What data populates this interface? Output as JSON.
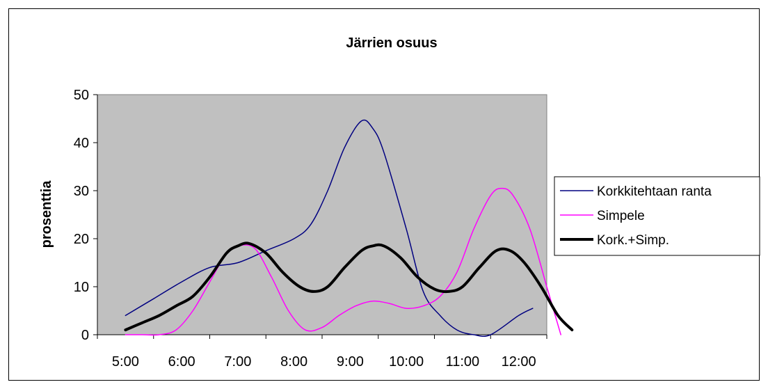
{
  "chart_data": {
    "type": "line",
    "title": "Järrien osuus",
    "xlabel": "",
    "ylabel": "prosenttia",
    "categories": [
      "5:00",
      "6:00",
      "7:00",
      "8:00",
      "9:00",
      "10:00",
      "11:00",
      "12:00"
    ],
    "ylim": [
      0,
      50
    ],
    "yticks": [
      0,
      10,
      20,
      30,
      40,
      50
    ],
    "grid": false,
    "legend": "right",
    "plot_background": "#c0c0c0",
    "series": [
      {
        "name": "Korkkitehtaan ranta",
        "color": "#000080",
        "width": 1.5,
        "points": [
          [
            5.0,
            4
          ],
          [
            5.5,
            7.5
          ],
          [
            6.0,
            11
          ],
          [
            6.5,
            14
          ],
          [
            7.0,
            15
          ],
          [
            7.5,
            17.5
          ],
          [
            8.0,
            20
          ],
          [
            8.3,
            23
          ],
          [
            8.6,
            30
          ],
          [
            8.9,
            39
          ],
          [
            9.2,
            44.5
          ],
          [
            9.4,
            43
          ],
          [
            9.6,
            38
          ],
          [
            10.0,
            22
          ],
          [
            10.3,
            9
          ],
          [
            10.6,
            4
          ],
          [
            10.9,
            1
          ],
          [
            11.2,
            0
          ],
          [
            11.5,
            0
          ],
          [
            12.0,
            4
          ],
          [
            12.25,
            5.5
          ]
        ]
      },
      {
        "name": "Simpele",
        "color": "#ff00ff",
        "width": 1.5,
        "points": [
          [
            5.0,
            0
          ],
          [
            5.3,
            0
          ],
          [
            5.6,
            0
          ],
          [
            5.9,
            1
          ],
          [
            6.2,
            5
          ],
          [
            6.5,
            11
          ],
          [
            6.8,
            17
          ],
          [
            7.0,
            18.5
          ],
          [
            7.3,
            18
          ],
          [
            7.6,
            12
          ],
          [
            7.9,
            5
          ],
          [
            8.2,
            1
          ],
          [
            8.5,
            1.5
          ],
          [
            8.8,
            4
          ],
          [
            9.1,
            6
          ],
          [
            9.4,
            7
          ],
          [
            9.7,
            6.5
          ],
          [
            10.0,
            5.5
          ],
          [
            10.3,
            6
          ],
          [
            10.6,
            8
          ],
          [
            10.9,
            13
          ],
          [
            11.2,
            22
          ],
          [
            11.5,
            29
          ],
          [
            11.7,
            30.5
          ],
          [
            11.9,
            29
          ],
          [
            12.2,
            22
          ],
          [
            12.5,
            10
          ],
          [
            12.75,
            0
          ]
        ]
      },
      {
        "name": "Kork.+Simp.",
        "color": "#000000",
        "width": 4,
        "points": [
          [
            5.0,
            1
          ],
          [
            5.3,
            2.5
          ],
          [
            5.6,
            4
          ],
          [
            5.9,
            6
          ],
          [
            6.2,
            8
          ],
          [
            6.5,
            12
          ],
          [
            6.8,
            17
          ],
          [
            7.0,
            18.5
          ],
          [
            7.2,
            19
          ],
          [
            7.5,
            17
          ],
          [
            7.8,
            13
          ],
          [
            8.1,
            10
          ],
          [
            8.35,
            9
          ],
          [
            8.6,
            10
          ],
          [
            8.9,
            14
          ],
          [
            9.2,
            17.5
          ],
          [
            9.4,
            18.5
          ],
          [
            9.6,
            18.5
          ],
          [
            9.9,
            16
          ],
          [
            10.2,
            12
          ],
          [
            10.5,
            9.5
          ],
          [
            10.75,
            9
          ],
          [
            11.0,
            10
          ],
          [
            11.3,
            14
          ],
          [
            11.6,
            17.5
          ],
          [
            11.85,
            17.5
          ],
          [
            12.1,
            15
          ],
          [
            12.4,
            10
          ],
          [
            12.7,
            4
          ],
          [
            12.95,
            1
          ]
        ]
      }
    ]
  }
}
